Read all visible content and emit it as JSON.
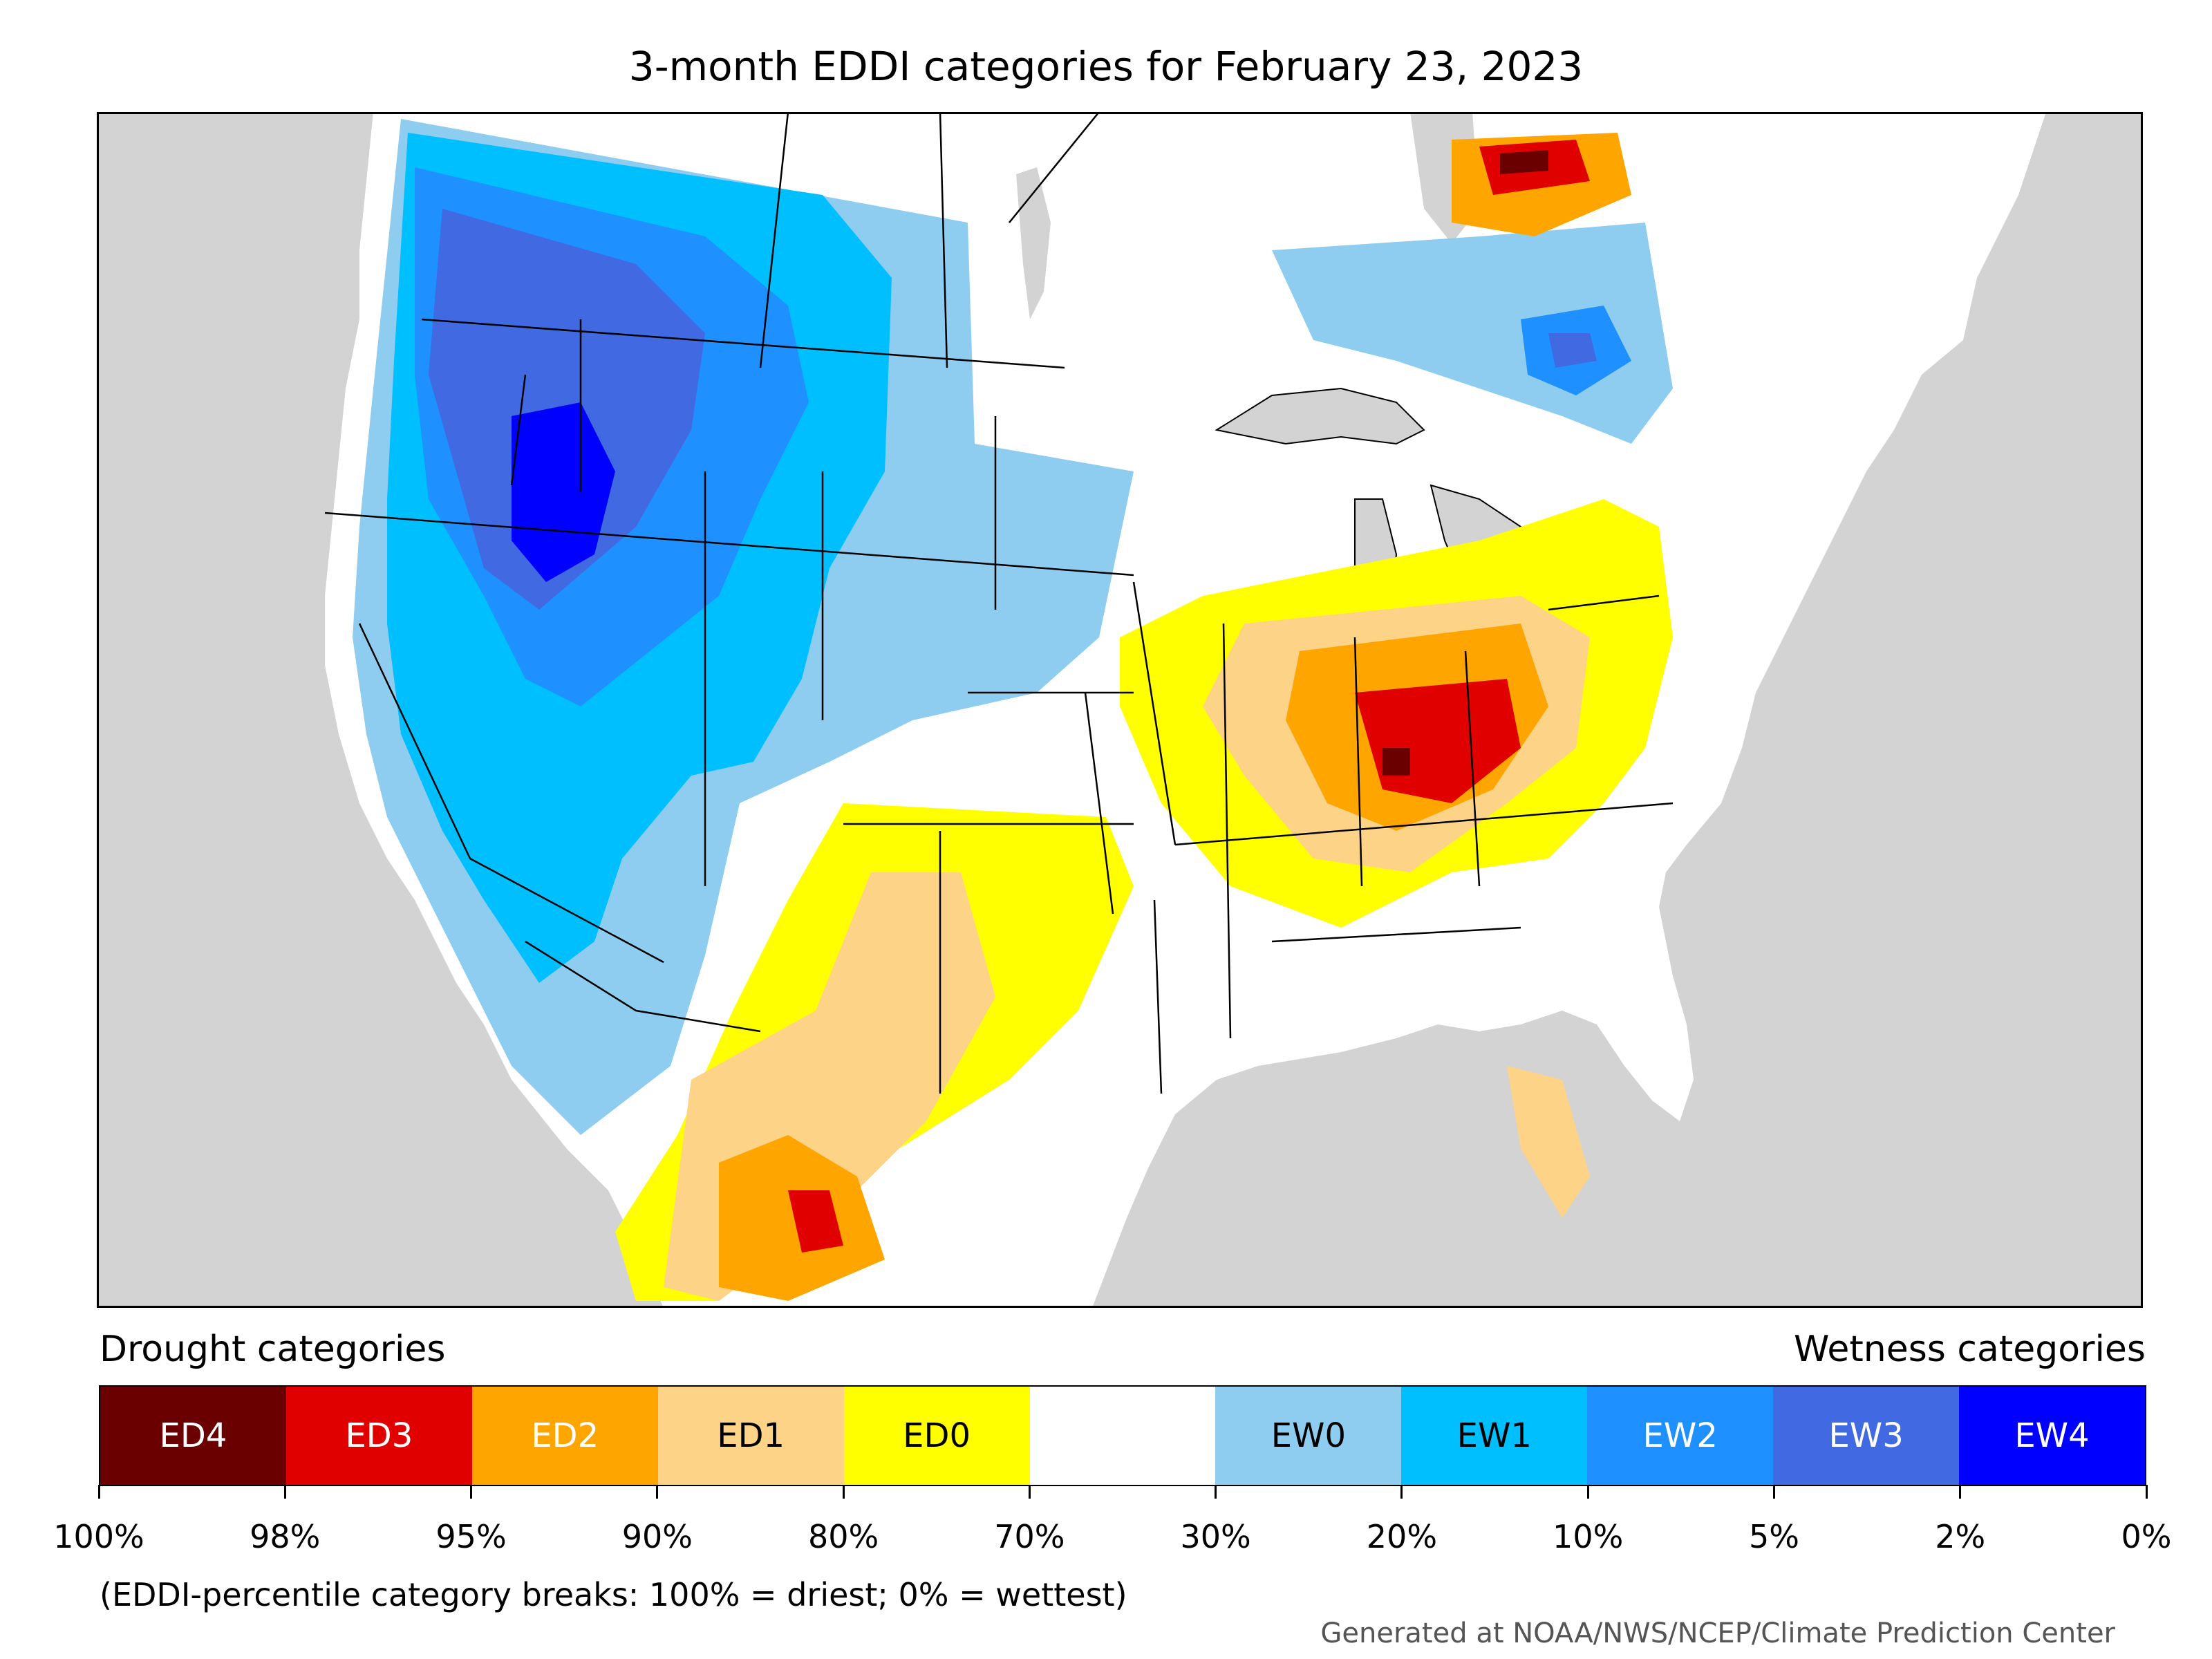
{
  "title": "3-month EDDI categories for February 23, 2023",
  "legend": {
    "drought_label": "Drought categories",
    "wet_label": "Wetness categories",
    "categories": [
      {
        "label": "ED4",
        "color": "#6b0000",
        "text_color": "#ffffff"
      },
      {
        "label": "ED3",
        "color": "#e00000",
        "text_color": "#ffffff"
      },
      {
        "label": "ED2",
        "color": "#ffa500",
        "text_color": "#ffffff"
      },
      {
        "label": "ED1",
        "color": "#fdd387",
        "text_color": "#000000"
      },
      {
        "label": "ED0",
        "color": "#ffff00",
        "text_color": "#000000"
      },
      {
        "label": "",
        "color": "#ffffff",
        "text_color": "#000000"
      },
      {
        "label": "EW0",
        "color": "#8ecdef",
        "text_color": "#000000"
      },
      {
        "label": "EW1",
        "color": "#00bfff",
        "text_color": "#000000"
      },
      {
        "label": "EW2",
        "color": "#1e90ff",
        "text_color": "#ffffff"
      },
      {
        "label": "EW3",
        "color": "#4169e1",
        "text_color": "#ffffff"
      },
      {
        "label": "EW4",
        "color": "#0000ff",
        "text_color": "#ffffff"
      }
    ],
    "tick_labels": [
      "100%",
      "98%",
      "95%",
      "90%",
      "80%",
      "70%",
      "30%",
      "20%",
      "10%",
      "5%",
      "2%",
      "0%"
    ]
  },
  "footnote": "(EDDI-percentile category breaks: 100% = driest; 0% = wettest)",
  "credit": "Generated at NOAA/NWS/NCEP/Climate Prediction Center",
  "map_colors": {
    "ocean": "#d3d3d3",
    "land": "#ffffff",
    "lake": "#d3d3d3"
  }
}
